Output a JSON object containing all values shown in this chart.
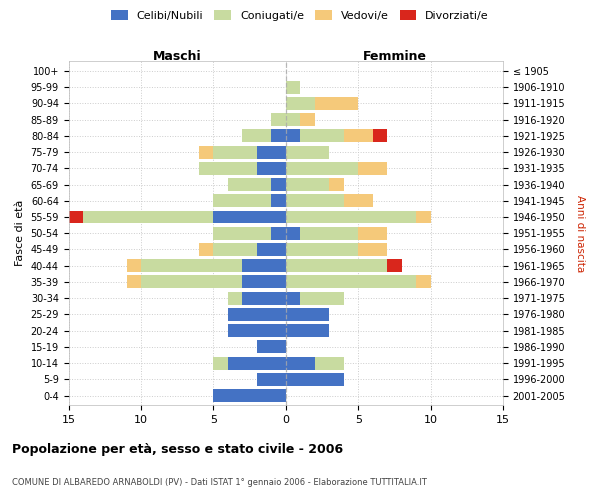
{
  "age_groups": [
    "0-4",
    "5-9",
    "10-14",
    "15-19",
    "20-24",
    "25-29",
    "30-34",
    "35-39",
    "40-44",
    "45-49",
    "50-54",
    "55-59",
    "60-64",
    "65-69",
    "70-74",
    "75-79",
    "80-84",
    "85-89",
    "90-94",
    "95-99",
    "100+"
  ],
  "birth_years": [
    "2001-2005",
    "1996-2000",
    "1991-1995",
    "1986-1990",
    "1981-1985",
    "1976-1980",
    "1971-1975",
    "1966-1970",
    "1961-1965",
    "1956-1960",
    "1951-1955",
    "1946-1950",
    "1941-1945",
    "1936-1940",
    "1931-1935",
    "1926-1930",
    "1921-1925",
    "1916-1920",
    "1911-1915",
    "1906-1910",
    "≤ 1905"
  ],
  "males": {
    "celibi": [
      5,
      2,
      4,
      2,
      4,
      4,
      3,
      3,
      3,
      2,
      1,
      5,
      1,
      1,
      2,
      2,
      1,
      0,
      0,
      0,
      0
    ],
    "coniugati": [
      0,
      0,
      1,
      0,
      0,
      0,
      1,
      7,
      7,
      3,
      4,
      9,
      4,
      3,
      4,
      3,
      2,
      1,
      0,
      0,
      0
    ],
    "vedovi": [
      0,
      0,
      0,
      0,
      0,
      0,
      0,
      1,
      1,
      1,
      0,
      0,
      0,
      0,
      0,
      1,
      0,
      0,
      0,
      0,
      0
    ],
    "divorziati": [
      0,
      0,
      0,
      0,
      0,
      0,
      0,
      0,
      0,
      0,
      0,
      1,
      0,
      0,
      0,
      0,
      0,
      0,
      0,
      0,
      0
    ]
  },
  "females": {
    "nubili": [
      0,
      4,
      2,
      0,
      3,
      3,
      1,
      0,
      0,
      0,
      1,
      0,
      0,
      0,
      0,
      0,
      1,
      0,
      0,
      0,
      0
    ],
    "coniugate": [
      0,
      0,
      2,
      0,
      0,
      0,
      3,
      9,
      7,
      5,
      4,
      9,
      4,
      3,
      5,
      3,
      3,
      1,
      2,
      1,
      0
    ],
    "vedove": [
      0,
      0,
      0,
      0,
      0,
      0,
      0,
      1,
      0,
      2,
      2,
      1,
      2,
      1,
      2,
      0,
      2,
      1,
      3,
      0,
      0
    ],
    "divorziate": [
      0,
      0,
      0,
      0,
      0,
      0,
      0,
      0,
      1,
      0,
      0,
      0,
      0,
      0,
      0,
      0,
      1,
      0,
      0,
      0,
      0
    ]
  },
  "colors": {
    "celibi": "#4472C4",
    "coniugati": "#c8dba0",
    "vedovi": "#f5c97a",
    "divorziati": "#d9261c"
  },
  "xlim": 15,
  "title1": "Popolazione per età, sesso e stato civile - 2006",
  "title2": "COMUNE DI ALBAREDO ARNABOLDI (PV) - Dati ISTAT 1° gennaio 2006 - Elaborazione TUTTITALIA.IT",
  "ylabel_left": "Fasce di età",
  "ylabel_right": "Anni di nascita",
  "xlabel_maschi": "Maschi",
  "xlabel_femmine": "Femmine",
  "legend_labels": [
    "Celibi/Nubili",
    "Coniugati/e",
    "Vedovi/e",
    "Divorziati/e"
  ]
}
